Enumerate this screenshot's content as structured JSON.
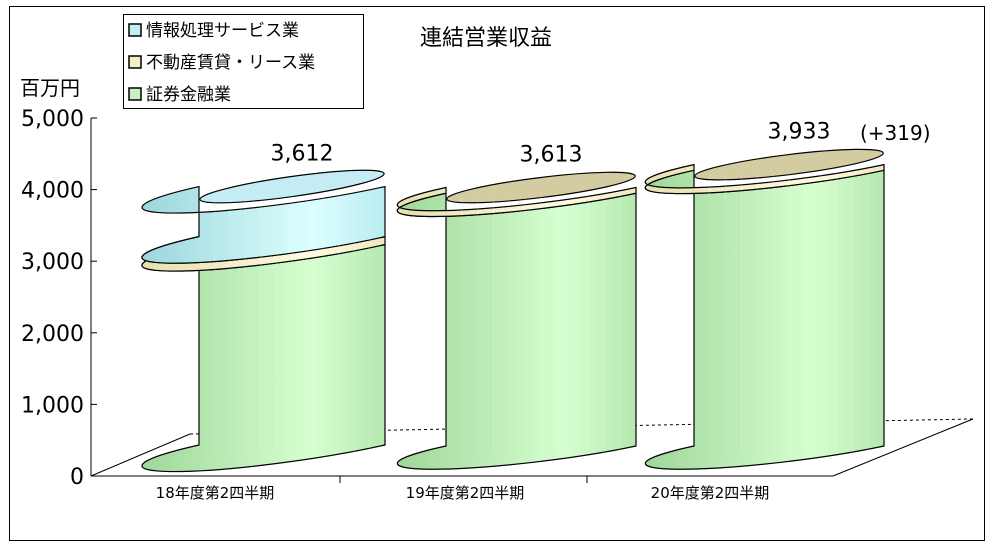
{
  "chart_data": {
    "type": "bar",
    "style": "3d-stacked-cylinder",
    "title": "連結営業収益",
    "ylabel": "百万円",
    "ylim": [
      0,
      5000
    ],
    "yticks": [
      0,
      1000,
      2000,
      3000,
      4000,
      5000
    ],
    "ytick_labels": [
      "0",
      "1,000",
      "2,000",
      "3,000",
      "4,000",
      "5,000"
    ],
    "categories": [
      "18年度第2四半期",
      "19年度第2四半期",
      "20年度第2四半期"
    ],
    "series": [
      {
        "name": "証券金融業",
        "values": [
          2800,
          3530,
          3850
        ],
        "color": "#c8f0c0"
      },
      {
        "name": "不動産賃貸・リース業",
        "values": [
          110,
          80,
          80
        ],
        "color": "#f4f0c8"
      },
      {
        "name": "情報処理サービス業",
        "values": [
          700,
          0,
          0
        ],
        "color": "#bfeef4"
      }
    ],
    "totals": [
      "3,612",
      "3,613",
      "3,933"
    ],
    "annotation": "(+319)",
    "legend_position": "top-left",
    "grid": false
  }
}
